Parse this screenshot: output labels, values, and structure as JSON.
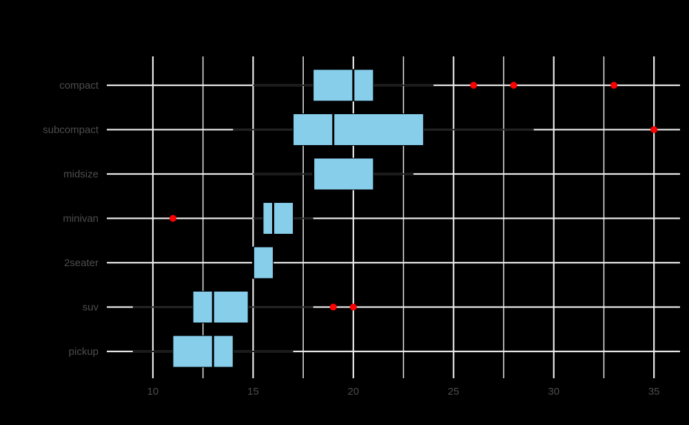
{
  "chart_data": {
    "type": "boxplot",
    "orientation": "horizontal",
    "title": "",
    "xlabel": "",
    "ylabel": "",
    "xlim": [
      7.7,
      36.3
    ],
    "x_ticks": [
      10,
      15,
      20,
      25,
      30,
      35
    ],
    "x_tick_labels": [
      "10",
      "15",
      "20",
      "25",
      "30",
      "35"
    ],
    "categories": [
      "compact",
      "subcompact",
      "midsize",
      "minivan",
      "2seater",
      "suv",
      "pickup"
    ],
    "boxes": [
      {
        "category": "compact",
        "whisker_low": 15,
        "q1": 18,
        "median": 20,
        "q3": 21,
        "whisker_high": 24,
        "outliers": [
          26,
          28,
          33
        ]
      },
      {
        "category": "subcompact",
        "whisker_low": 14,
        "q1": 17,
        "median": 19,
        "q3": 23.5,
        "whisker_high": 29,
        "outliers": [
          35
        ]
      },
      {
        "category": "midsize",
        "whisker_low": 15,
        "q1": 18,
        "median": 18,
        "q3": 21,
        "whisker_high": 23,
        "outliers": []
      },
      {
        "category": "minivan",
        "whisker_low": 15,
        "q1": 15.5,
        "median": 16,
        "q3": 17,
        "whisker_high": 18,
        "outliers": [
          11
        ]
      },
      {
        "category": "2seater",
        "whisker_low": 15,
        "q1": 15,
        "median": 15,
        "q3": 16,
        "whisker_high": 16,
        "outliers": []
      },
      {
        "category": "suv",
        "whisker_low": 9,
        "q1": 12,
        "median": 13,
        "q3": 14.75,
        "whisker_high": 18,
        "outliers": [
          19,
          20
        ]
      },
      {
        "category": "pickup",
        "whisker_low": 9,
        "q1": 11,
        "median": 13,
        "q3": 14,
        "whisker_high": 17,
        "outliers": []
      }
    ],
    "colors": {
      "background": "#000000",
      "box_fill": "#87ceeb",
      "box_stroke": "#000000",
      "whisker": "#1a1a1a",
      "outlier": "#ff0000",
      "grid_major": "#ebebeb",
      "grid_minor": "#ebebeb",
      "text": "#4d4d4d"
    },
    "grid": true
  }
}
